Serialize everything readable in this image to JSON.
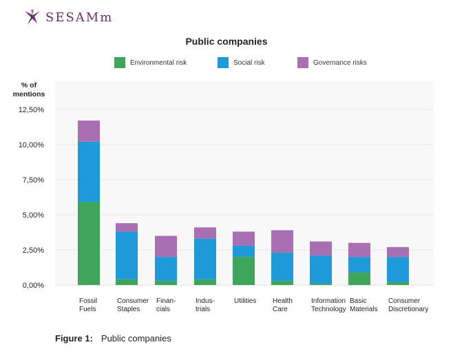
{
  "brand": {
    "name": "SESAMm",
    "logo_icon": "sesamm-logo-icon"
  },
  "chart_data": {
    "type": "bar",
    "stacked": true,
    "title": "Public companies",
    "ylabel": "% of mentions",
    "xlabel": "",
    "ylim": [
      0,
      14.5
    ],
    "yticks": [
      "0,00%",
      "2,50%",
      "5,00%",
      "7,50%",
      "10,00%",
      "12,50%"
    ],
    "grid": true,
    "legend_placement": "top",
    "categories": [
      [
        "Fossil",
        "Fuels"
      ],
      [
        "Consumer",
        "Staples"
      ],
      [
        "Finan-",
        "cials"
      ],
      [
        "Indus-",
        "trials"
      ],
      [
        "Utilities"
      ],
      [
        "Health",
        "Care"
      ],
      [
        "Information",
        "Technology"
      ],
      [
        "Basic",
        "Materials"
      ],
      [
        "Consumer",
        "Discretionary"
      ]
    ],
    "series": [
      {
        "name": "Environmental risk",
        "color": "#3fa55a",
        "values": [
          5.9,
          0.4,
          0.3,
          0.4,
          2.0,
          0.3,
          0.1,
          0.9,
          0.2
        ]
      },
      {
        "name": "Social risk",
        "color": "#1f9ad8",
        "values": [
          4.3,
          3.4,
          1.7,
          2.9,
          0.8,
          2.0,
          2.0,
          1.1,
          1.8
        ]
      },
      {
        "name": "Governance risks",
        "color": "#a86fb3",
        "values": [
          1.5,
          0.6,
          1.5,
          0.8,
          1.0,
          1.6,
          1.0,
          1.0,
          0.7
        ]
      }
    ]
  },
  "caption": {
    "label": "Figure 1:",
    "text": "Public companies"
  }
}
